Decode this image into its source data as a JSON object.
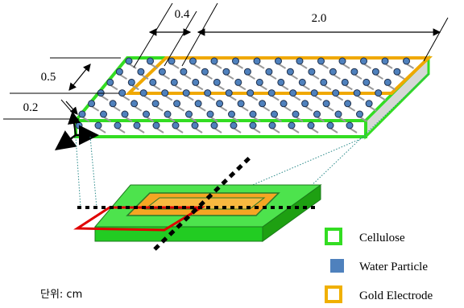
{
  "dimensions": {
    "width_label": "2.0",
    "spacing_label": "0.4",
    "depth_label": "0.5",
    "thickness_label": "0.2"
  },
  "legend": [
    {
      "label": "Cellulose",
      "color": "#33dd22",
      "style": "outline"
    },
    {
      "label": "Water Particle",
      "color": "#4f81bd",
      "style": "fill"
    },
    {
      "label": "Gold Electrode",
      "color": "#f0b000",
      "style": "outline"
    }
  ],
  "unit_label": "단위: cm",
  "colors": {
    "cellulose": "#33dd22",
    "cellulose_dark": "#1ea012",
    "gold": "#f0a800",
    "gold_fill": "#f5a623",
    "water": "#4f81bd",
    "red_frame": "#e00000"
  }
}
